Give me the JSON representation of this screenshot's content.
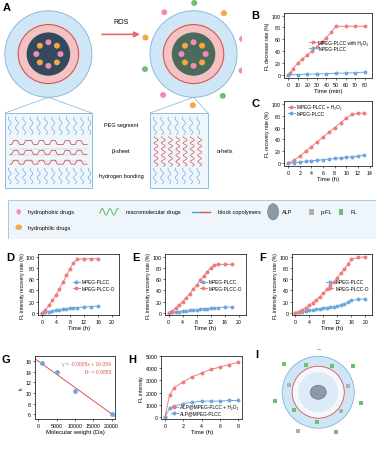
{
  "chart_data": [
    {
      "type": "line",
      "panel_label": "B",
      "x_label": "Time (min)",
      "y_label": "FL decrease rate (%)",
      "xlim": [
        -4,
        88
      ],
      "ylim": [
        -5,
        105
      ],
      "xticks": [
        0,
        10,
        20,
        30,
        40,
        50,
        60,
        70,
        80
      ],
      "yticks": [
        0,
        20,
        40,
        60,
        80,
        100
      ],
      "legend": "center right",
      "series": [
        {
          "name": "MPEG-PLCC with H₂O₂",
          "color": "#f07b7b",
          "marker": "circle",
          "x": [
            0,
            2,
            5,
            10,
            15,
            20,
            25,
            30,
            35,
            40,
            45,
            50,
            60,
            70,
            80
          ],
          "values": [
            0,
            3,
            10,
            20,
            27,
            34,
            40,
            47,
            55,
            63,
            72,
            82,
            82,
            82,
            82
          ]
        },
        {
          "name": "MPEG-PLCC",
          "color": "#6fa8dc",
          "marker": "circle",
          "x": [
            0,
            10,
            20,
            30,
            40,
            50,
            60,
            70,
            80
          ],
          "values": [
            0,
            1,
            1.5,
            2,
            2.5,
            3,
            3.5,
            4,
            5
          ]
        }
      ]
    },
    {
      "type": "line",
      "panel_label": "C",
      "x_label": "Time (h)",
      "y_label": "FL recovery rate (%)",
      "xlim": [
        -0.7,
        14.5
      ],
      "ylim": [
        -5,
        105
      ],
      "xticks": [
        0,
        2,
        4,
        6,
        8,
        10,
        12,
        14
      ],
      "yticks": [
        0,
        20,
        40,
        60,
        80,
        100
      ],
      "legend": "upper left",
      "series": [
        {
          "name": "MPEG-PLCC + H₂O₂",
          "color": "#f07b7b",
          "marker": "circle",
          "x": [
            0,
            1,
            2,
            3,
            4,
            5,
            6,
            7,
            8,
            9,
            10,
            11,
            12,
            13
          ],
          "values": [
            0,
            5,
            12,
            20,
            28,
            36,
            44,
            52,
            60,
            68,
            76,
            82,
            84,
            84
          ]
        },
        {
          "name": "MPEG-PLCC",
          "color": "#6fa8dc",
          "marker": "circle",
          "x": [
            0,
            1,
            2,
            3,
            4,
            5,
            6,
            7,
            8,
            9,
            10,
            11,
            12,
            13
          ],
          "values": [
            0,
            1,
            2,
            3,
            4,
            5,
            6,
            7,
            8,
            9,
            10,
            11,
            12,
            14
          ]
        }
      ]
    },
    {
      "type": "line",
      "panel_label": "D",
      "x_label": "Time (h)",
      "y_label": "FL intensity recovery rate (%)",
      "xlim": [
        -1,
        22
      ],
      "ylim": [
        -5,
        105
      ],
      "xticks": [
        0,
        4,
        8,
        12,
        16,
        20
      ],
      "yticks": [
        0,
        20,
        40,
        60,
        80,
        100
      ],
      "legend": "center right",
      "series": [
        {
          "name": "MPEG-PLCC",
          "color": "#6fa8dc",
          "marker": "circle",
          "x": [
            0,
            1,
            2,
            3,
            4,
            5,
            6,
            7,
            8,
            9,
            10,
            12,
            14,
            16
          ],
          "values": [
            0,
            1,
            2,
            3,
            4,
            5,
            6,
            7,
            8,
            8,
            9,
            10,
            11,
            12
          ]
        },
        {
          "name": "MPEG-PLCC-O",
          "color": "#f07b7b",
          "marker": "circle",
          "x": [
            0,
            1,
            2,
            3,
            4,
            5,
            6,
            7,
            8,
            9,
            10,
            12,
            14,
            16
          ],
          "values": [
            0,
            5,
            13,
            22,
            32,
            43,
            55,
            67,
            79,
            90,
            96,
            97,
            97,
            97
          ]
        }
      ]
    },
    {
      "type": "line",
      "panel_label": "E",
      "x_label": "Time (h)",
      "y_label": "FL intensity recovery rate (%)",
      "xlim": [
        -1,
        22
      ],
      "ylim": [
        -5,
        105
      ],
      "xticks": [
        0,
        4,
        8,
        12,
        16,
        20
      ],
      "yticks": [
        0,
        20,
        40,
        60,
        80,
        100
      ],
      "legend": "center right",
      "series": [
        {
          "name": "MPEG-PLCC",
          "color": "#6fa8dc",
          "marker": "circle",
          "x": [
            0,
            1,
            2,
            3,
            4,
            5,
            6,
            7,
            8,
            9,
            10,
            11,
            12,
            13,
            14,
            16,
            18
          ],
          "values": [
            0,
            1,
            1,
            2,
            3,
            3,
            4,
            5,
            5,
            6,
            7,
            7,
            8,
            9,
            9,
            10,
            10
          ]
        },
        {
          "name": "MPEG-PLCC-O",
          "color": "#f07b7b",
          "marker": "circle",
          "x": [
            0,
            1,
            2,
            3,
            4,
            5,
            6,
            7,
            8,
            9,
            10,
            11,
            12,
            13,
            14,
            16,
            18
          ],
          "values": [
            0,
            3,
            8,
            14,
            20,
            27,
            34,
            42,
            50,
            58,
            66,
            74,
            81,
            86,
            87,
            87,
            87
          ]
        }
      ]
    },
    {
      "type": "line",
      "panel_label": "F",
      "x_label": "Time (h)",
      "y_label": "FL intensity recovery rate (%)",
      "xlim": [
        -1,
        22
      ],
      "ylim": [
        -5,
        105
      ],
      "xticks": [
        0,
        4,
        8,
        12,
        16,
        20
      ],
      "yticks": [
        0,
        20,
        40,
        60,
        80,
        100
      ],
      "legend": "center right",
      "series": [
        {
          "name": "MPEG-PLCC",
          "color": "#6fa8dc",
          "marker": "circle",
          "x": [
            0,
            1,
            2,
            3,
            4,
            5,
            6,
            7,
            8,
            9,
            10,
            11,
            12,
            13,
            14,
            15,
            16,
            18,
            20
          ],
          "values": [
            0,
            1,
            2,
            3,
            4,
            5,
            6,
            7,
            8,
            9,
            10,
            11,
            12,
            14,
            16,
            19,
            22,
            24,
            25
          ]
        },
        {
          "name": "MPEG-PLCC-O",
          "color": "#f07b7b",
          "marker": "circle",
          "x": [
            0,
            1,
            2,
            3,
            4,
            5,
            6,
            7,
            8,
            9,
            10,
            11,
            12,
            13,
            14,
            15,
            16,
            18,
            20
          ],
          "values": [
            0,
            2,
            5,
            9,
            13,
            18,
            23,
            29,
            35,
            42,
            49,
            56,
            63,
            71,
            79,
            87,
            96,
            100,
            100
          ]
        }
      ]
    },
    {
      "type": "scatter",
      "panel_label": "G",
      "x_label": "Molecular weight (Da)",
      "y_label": "k",
      "xlim": [
        -1000,
        21000
      ],
      "ylim": [
        5,
        17
      ],
      "xticks": [
        0,
        5000,
        10000,
        15000,
        20000
      ],
      "yticks": [
        6,
        8,
        10,
        12,
        14,
        16
      ],
      "x": [
        1000,
        5000,
        10000,
        20000
      ],
      "values": [
        15.6,
        13.9,
        10.3,
        6.1
      ],
      "color": "#6fa8dc",
      "marker": "circle",
      "fit": {
        "slope": -0.0005,
        "intercept": 16.054,
        "color": "#e05555"
      },
      "annotations": [
        "y = -0.0005x + 16.054",
        "R² = 0.9853"
      ]
    },
    {
      "type": "line",
      "panel_label": "H",
      "x_label": "Time (h)",
      "y_label": "FL intensity",
      "xlim": [
        -0.4,
        8.4
      ],
      "ylim": [
        -200,
        5000
      ],
      "xticks": [
        0,
        2,
        4,
        6,
        8
      ],
      "yticks": [
        0,
        1000,
        2000,
        3000,
        4000,
        5000
      ],
      "legend": "lower right",
      "series": [
        {
          "name": "ALP@MPEG-PLCC + H₂O₂",
          "color": "#f07b7b",
          "marker": "circle",
          "x": [
            0,
            0.5,
            1,
            2,
            3,
            4,
            5,
            6,
            7,
            8
          ],
          "values": [
            0,
            1800,
            2400,
            2900,
            3300,
            3600,
            3900,
            4100,
            4300,
            4500
          ]
        },
        {
          "name": "ALP@MPEG-PLCC",
          "color": "#6fa8dc",
          "marker": "circle",
          "x": [
            0,
            0.5,
            1,
            2,
            3,
            4,
            5,
            6,
            7,
            8
          ],
          "values": [
            0,
            700,
            900,
            1100,
            1200,
            1300,
            1300,
            1300,
            1350,
            1350
          ]
        }
      ]
    }
  ],
  "diagram": {
    "A": {
      "panel_label": "A",
      "trigger": "ROS",
      "labels_left": [
        "PEG segment",
        "β-sheet",
        "hydrogen bonding"
      ],
      "label_right": "α-helix"
    },
    "legend": {
      "items": [
        "hydrophobic drugs",
        "macromolecular drugs",
        "block copolymers",
        "ALP",
        "p-FL",
        "FL",
        "hydrophilic drugs"
      ]
    },
    "I": {
      "panel_label": "I"
    }
  }
}
